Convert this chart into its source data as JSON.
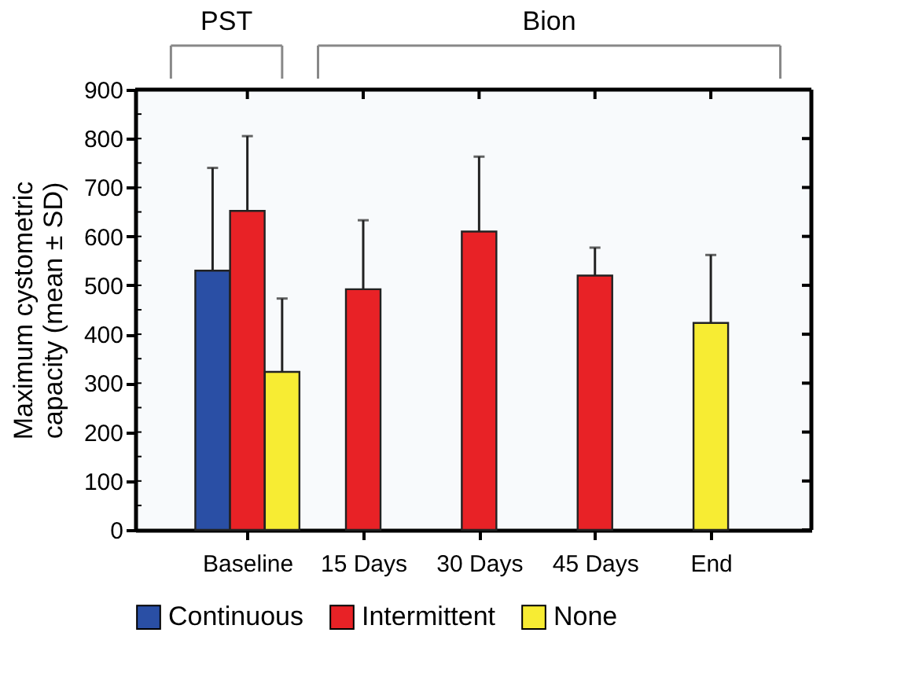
{
  "chart_data": {
    "type": "bar",
    "ylabel": "Maximum cystometric\ncapacity (mean ± SD)",
    "categories": [
      "Baseline",
      "15 Days",
      "30 Days",
      "45 Days",
      "End"
    ],
    "series": [
      {
        "name": "Continuous",
        "color": "#2a4fa5",
        "values": [
          530,
          null,
          null,
          null,
          null
        ],
        "errors": [
          [
            530,
            740
          ],
          null,
          null,
          null,
          null
        ]
      },
      {
        "name": "Intermittent",
        "color": "#e82226",
        "values": [
          652,
          492,
          610,
          520,
          null
        ],
        "errors": [
          [
            652,
            805
          ],
          [
            492,
            633
          ],
          [
            610,
            763
          ],
          [
            520,
            577
          ],
          null
        ]
      },
      {
        "name": "None",
        "color": "#f7ec33",
        "values": [
          323,
          null,
          null,
          null,
          423
        ],
        "errors": [
          [
            323,
            473
          ],
          null,
          null,
          null,
          [
            423,
            562
          ]
        ]
      }
    ],
    "ylim": [
      0,
      900
    ],
    "yticks": [
      0,
      100,
      200,
      300,
      400,
      500,
      600,
      700,
      800,
      900
    ],
    "annotations": [
      "PST",
      "Bion"
    ],
    "legend": "bottom",
    "grid": false
  }
}
